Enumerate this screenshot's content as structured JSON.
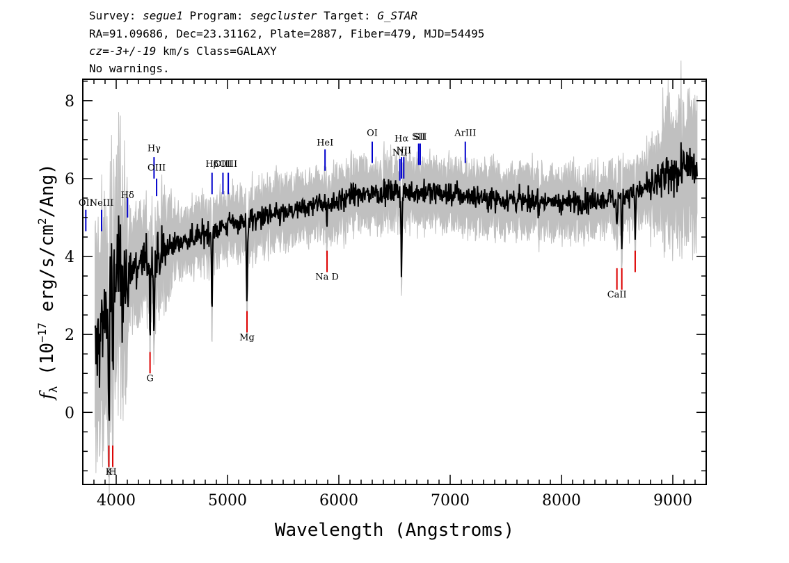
{
  "header": {
    "line1_prefix": "Survey: ",
    "survey": "segue1",
    "program_label": " Program: ",
    "program": "segcluster",
    "target_label": " Target: ",
    "target": "G_STAR",
    "line2": "RA=91.09686, Dec=23.31162, Plate=2887, Fiber=479, MJD=54495",
    "cz_label": "cz=",
    "cz_value": "-3+/-19",
    "cz_units": " km/s Class=GALAXY",
    "line4": "No warnings."
  },
  "chart_data": {
    "type": "line",
    "xlabel": "Wavelength (Angstroms)",
    "ylabel_prefix": "f",
    "ylabel_sub": "λ",
    "ylabel_main": " (10",
    "ylabel_exp1": "−17",
    "ylabel_mid": " erg/s/cm",
    "ylabel_exp2": "2",
    "ylabel_end": "/Ang)",
    "xlim": [
      3700,
      9300
    ],
    "ylim": [
      -1.85,
      8.55
    ],
    "xticks": [
      "4000",
      "5000",
      "6000",
      "7000",
      "8000",
      "9000"
    ],
    "yticks": [
      "0",
      "2",
      "4",
      "6",
      "8"
    ],
    "colors": {
      "spectrum": "#000000",
      "noise": "#c0c0c0",
      "emission": "#0000cc",
      "absorption": "#dd0000"
    },
    "spectrum_anchors": [
      [
        3810,
        1.4
      ],
      [
        3860,
        2.0
      ],
      [
        3900,
        2.6
      ],
      [
        3960,
        3.2
      ],
      [
        4000,
        3.5
      ],
      [
        4100,
        3.6
      ],
      [
        4200,
        3.8
      ],
      [
        4300,
        3.9
      ],
      [
        4400,
        4.0
      ],
      [
        4500,
        4.3
      ],
      [
        4600,
        4.4
      ],
      [
        4700,
        4.5
      ],
      [
        4800,
        4.6
      ],
      [
        4900,
        4.7
      ],
      [
        5000,
        4.8
      ],
      [
        5100,
        4.9
      ],
      [
        5200,
        4.95
      ],
      [
        5300,
        5.0
      ],
      [
        5400,
        5.05
      ],
      [
        5500,
        5.1
      ],
      [
        5600,
        5.15
      ],
      [
        5700,
        5.25
      ],
      [
        5800,
        5.35
      ],
      [
        5900,
        5.4
      ],
      [
        6000,
        5.45
      ],
      [
        6200,
        5.6
      ],
      [
        6400,
        5.65
      ],
      [
        6600,
        5.65
      ],
      [
        6800,
        5.65
      ],
      [
        7000,
        5.6
      ],
      [
        7200,
        5.55
      ],
      [
        7400,
        5.5
      ],
      [
        7600,
        5.45
      ],
      [
        7800,
        5.4
      ],
      [
        8000,
        5.4
      ],
      [
        8200,
        5.4
      ],
      [
        8400,
        5.45
      ],
      [
        8600,
        5.6
      ],
      [
        8800,
        5.8
      ],
      [
        9000,
        6.1
      ],
      [
        9100,
        6.3
      ],
      [
        9200,
        6.2
      ]
    ],
    "absorption_dips": [
      {
        "x": 3934,
        "depth": 3.8,
        "width": 6
      },
      {
        "x": 3969,
        "depth": 3.0,
        "width": 6
      },
      {
        "x": 4102,
        "depth": 1.2,
        "width": 6
      },
      {
        "x": 4304,
        "depth": 1.8,
        "width": 5
      },
      {
        "x": 4340,
        "depth": 1.9,
        "width": 6
      },
      {
        "x": 4861,
        "depth": 1.9,
        "width": 6
      },
      {
        "x": 5175,
        "depth": 2.2,
        "width": 7
      },
      {
        "x": 5893,
        "depth": 0.6,
        "width": 6
      },
      {
        "x": 6563,
        "depth": 2.1,
        "width": 6
      },
      {
        "x": 8498,
        "depth": 0.9,
        "width": 5
      },
      {
        "x": 8542,
        "depth": 1.4,
        "width": 5
      },
      {
        "x": 8662,
        "depth": 1.2,
        "width": 5
      }
    ],
    "emission_lines": [
      {
        "label": "OII",
        "x": 3727,
        "y0": 4.65,
        "y1": 5.2,
        "label_y": 5.3
      },
      {
        "label": "NeIII",
        "x": 3869,
        "y0": 4.65,
        "y1": 5.2,
        "label_y": 5.3
      },
      {
        "label": "Hδ",
        "x": 4102,
        "y0": 5.0,
        "y1": 5.5,
        "label_y": 5.5
      },
      {
        "label": "Hγ",
        "x": 4340,
        "y0": 6.0,
        "y1": 6.55,
        "label_y": 6.7
      },
      {
        "label": "OIII",
        "x": 4363,
        "y0": 5.55,
        "y1": 6.0,
        "label_y": 6.2
      },
      {
        "label": "Hβ",
        "x": 4861,
        "y0": 5.6,
        "y1": 6.15,
        "label_y": 6.3
      },
      {
        "label": "OIII",
        "x": 4959,
        "y0": 5.6,
        "y1": 6.15,
        "label_y": 6.3
      },
      {
        "label": "OIII",
        "x": 5007,
        "y0": 5.6,
        "y1": 6.15,
        "label_y": 6.3
      },
      {
        "label": "HeI",
        "x": 5876,
        "y0": 6.2,
        "y1": 6.75,
        "label_y": 6.85
      },
      {
        "label": "OI",
        "x": 6300,
        "y0": 6.4,
        "y1": 6.95,
        "label_y": 7.1
      },
      {
        "label": "NII",
        "x": 6548,
        "y0": 5.95,
        "y1": 6.5,
        "label_y": 6.6
      },
      {
        "label": "Hα",
        "x": 6563,
        "y0": 6.0,
        "y1": 6.55,
        "label_y": 6.95
      },
      {
        "label": "NII",
        "x": 6583,
        "y0": 6.0,
        "y1": 6.55,
        "label_y": 6.65
      },
      {
        "label": "SII",
        "x": 6717,
        "y0": 6.35,
        "y1": 6.9,
        "label_y": 7.0
      },
      {
        "label": "SII",
        "x": 6731,
        "y0": 6.35,
        "y1": 6.9,
        "label_y": 7.0
      },
      {
        "label": "ArIII",
        "x": 7136,
        "y0": 6.4,
        "y1": 6.95,
        "label_y": 7.1
      }
    ],
    "absorption_lines": [
      {
        "label": "K",
        "x": 3934,
        "y0": -1.4,
        "y1": -0.85,
        "label_y": -1.6
      },
      {
        "label": "H",
        "x": 3969,
        "y0": -1.4,
        "y1": -0.85,
        "label_y": -1.6
      },
      {
        "label": "G",
        "x": 4304,
        "y0": 1.0,
        "y1": 1.55,
        "label_y": 0.8
      },
      {
        "label": "Mg",
        "x": 5175,
        "y0": 2.05,
        "y1": 2.6,
        "label_y": 1.85
      },
      {
        "label": "Na D",
        "x": 5894,
        "y0": 3.6,
        "y1": 4.15,
        "label_y": 3.4
      },
      {
        "label": "CaII",
        "x": 8498,
        "y0": 3.15,
        "y1": 3.7,
        "label_y": 2.95
      },
      {
        "label": "",
        "x": 8542,
        "y0": 3.15,
        "y1": 3.7,
        "label_y": 2.95
      },
      {
        "label": "",
        "x": 8662,
        "y0": 3.6,
        "y1": 4.15,
        "label_y": 3.4
      }
    ]
  }
}
